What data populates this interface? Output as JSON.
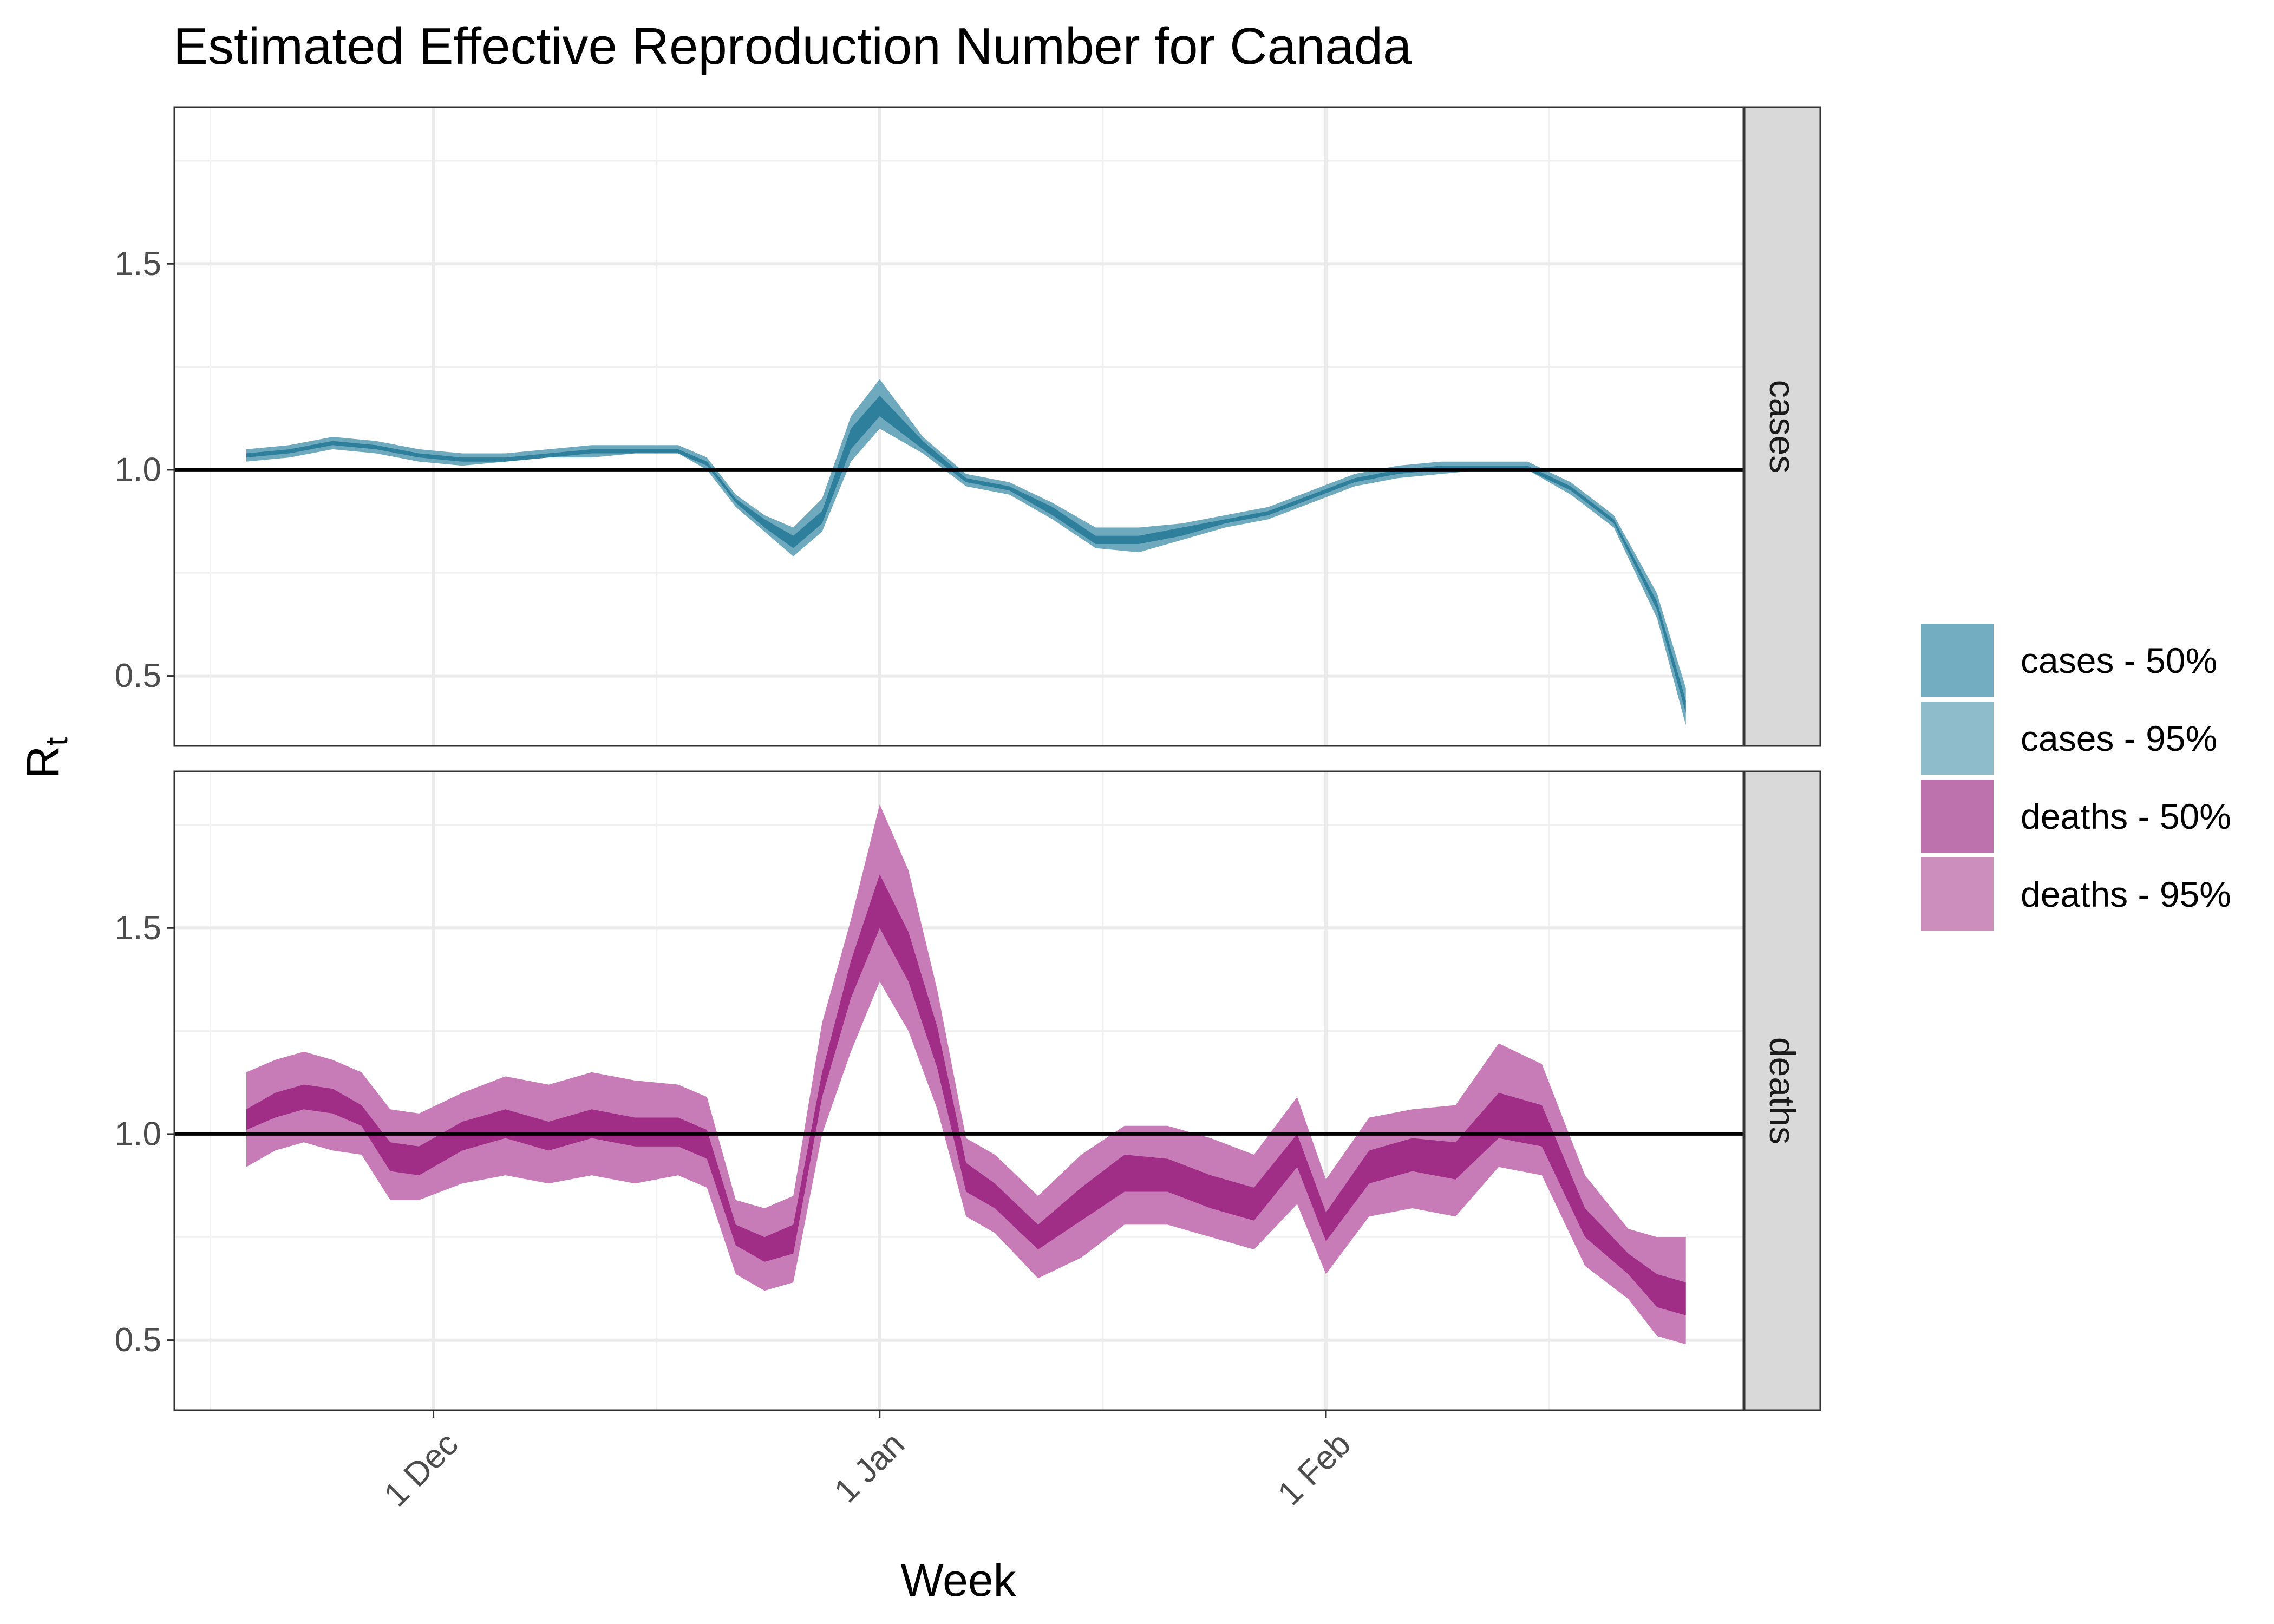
{
  "chart_data": {
    "type": "area",
    "title": "Estimated Effective Reproduction Number for Canada",
    "xlabel": "Week",
    "ylabel": "R",
    "ylabel_subscript": "t",
    "x_ticks": [
      {
        "date": "2021-12-01",
        "label": "1 Dec"
      },
      {
        "date": "2022-01-01",
        "label": "1 Jan"
      },
      {
        "date": "2022-02-01",
        "label": "1 Feb"
      }
    ],
    "xlim": [
      "2021-11-13",
      "2022-03-02"
    ],
    "ylim": [
      0.33,
      1.88
    ],
    "y_ticks": [
      0.5,
      1.0,
      1.5
    ],
    "y_tick_labels": [
      "0.5",
      "1.0",
      "1.5"
    ],
    "reference_line": 1.0,
    "grid": true,
    "legend_position": "right",
    "legend": [
      "cases - 50%",
      "cases - 95%",
      "deaths - 50%",
      "deaths - 95%"
    ],
    "colors": {
      "cases_50": "#2e7f9b",
      "cases_95": "#6fa9bd",
      "deaths_50": "#a02d86",
      "deaths_95": "#c77cb7",
      "legend_cases_50": "#72adc1",
      "legend_cases_95": "#8ebccb",
      "legend_deaths_50": "#bd72ad",
      "legend_deaths_95": "#cb8ebd",
      "strip_bg": "#d9d9d9"
    },
    "panels": [
      {
        "name": "cases",
        "x": [
          "2021-11-18",
          "2021-11-21",
          "2021-11-24",
          "2021-11-27",
          "2021-11-30",
          "2021-12-03",
          "2021-12-06",
          "2021-12-09",
          "2021-12-12",
          "2021-12-15",
          "2021-12-18",
          "2021-12-20",
          "2021-12-22",
          "2021-12-24",
          "2021-12-26",
          "2021-12-28",
          "2021-12-30",
          "2022-01-01",
          "2022-01-04",
          "2022-01-07",
          "2022-01-10",
          "2022-01-13",
          "2022-01-16",
          "2022-01-19",
          "2022-01-22",
          "2022-01-25",
          "2022-01-28",
          "2022-01-31",
          "2022-02-03",
          "2022-02-06",
          "2022-02-09",
          "2022-02-12",
          "2022-02-15",
          "2022-02-18",
          "2022-02-21",
          "2022-02-24",
          "2022-02-26"
        ],
        "lower95": [
          1.02,
          1.03,
          1.05,
          1.04,
          1.02,
          1.01,
          1.02,
          1.03,
          1.03,
          1.04,
          1.04,
          1.0,
          0.91,
          0.85,
          0.79,
          0.85,
          1.02,
          1.1,
          1.04,
          0.96,
          0.94,
          0.88,
          0.81,
          0.8,
          0.83,
          0.86,
          0.88,
          0.92,
          0.96,
          0.98,
          0.99,
          1.0,
          1.0,
          0.94,
          0.86,
          0.64,
          0.38
        ],
        "lower50": [
          1.03,
          1.04,
          1.06,
          1.05,
          1.03,
          1.02,
          1.02,
          1.03,
          1.04,
          1.04,
          1.04,
          1.01,
          0.92,
          0.86,
          0.81,
          0.87,
          1.05,
          1.13,
          1.05,
          0.97,
          0.95,
          0.89,
          0.82,
          0.82,
          0.84,
          0.87,
          0.89,
          0.93,
          0.97,
          0.99,
          1.0,
          1.0,
          1.0,
          0.95,
          0.87,
          0.66,
          0.41
        ],
        "upper50": [
          1.04,
          1.05,
          1.07,
          1.06,
          1.04,
          1.03,
          1.03,
          1.04,
          1.05,
          1.05,
          1.05,
          1.02,
          0.93,
          0.88,
          0.84,
          0.9,
          1.1,
          1.18,
          1.07,
          0.98,
          0.96,
          0.91,
          0.84,
          0.84,
          0.86,
          0.88,
          0.9,
          0.94,
          0.98,
          1.0,
          1.01,
          1.01,
          1.01,
          0.96,
          0.88,
          0.68,
          0.44
        ],
        "upper95": [
          1.05,
          1.06,
          1.08,
          1.07,
          1.05,
          1.04,
          1.04,
          1.05,
          1.06,
          1.06,
          1.06,
          1.03,
          0.94,
          0.89,
          0.86,
          0.93,
          1.13,
          1.22,
          1.08,
          0.99,
          0.97,
          0.92,
          0.86,
          0.86,
          0.87,
          0.89,
          0.91,
          0.95,
          0.99,
          1.01,
          1.02,
          1.02,
          1.02,
          0.97,
          0.89,
          0.7,
          0.47
        ]
      },
      {
        "name": "deaths",
        "x": [
          "2021-11-18",
          "2021-11-20",
          "2021-11-22",
          "2021-11-24",
          "2021-11-26",
          "2021-11-28",
          "2021-11-30",
          "2021-12-03",
          "2021-12-06",
          "2021-12-09",
          "2021-12-12",
          "2021-12-15",
          "2021-12-18",
          "2021-12-20",
          "2021-12-22",
          "2021-12-24",
          "2021-12-26",
          "2021-12-28",
          "2021-12-30",
          "2022-01-01",
          "2022-01-03",
          "2022-01-05",
          "2022-01-07",
          "2022-01-09",
          "2022-01-12",
          "2022-01-15",
          "2022-01-18",
          "2022-01-21",
          "2022-01-24",
          "2022-01-27",
          "2022-01-30",
          "2022-02-01",
          "2022-02-04",
          "2022-02-07",
          "2022-02-10",
          "2022-02-13",
          "2022-02-16",
          "2022-02-19",
          "2022-02-22",
          "2022-02-24",
          "2022-02-26"
        ],
        "lower95": [
          0.92,
          0.96,
          0.98,
          0.96,
          0.95,
          0.84,
          0.84,
          0.88,
          0.9,
          0.88,
          0.9,
          0.88,
          0.9,
          0.87,
          0.66,
          0.62,
          0.64,
          1.0,
          1.2,
          1.37,
          1.25,
          1.06,
          0.8,
          0.76,
          0.65,
          0.7,
          0.78,
          0.78,
          0.75,
          0.72,
          0.83,
          0.66,
          0.8,
          0.82,
          0.8,
          0.92,
          0.9,
          0.68,
          0.6,
          0.51,
          0.49
        ],
        "lower50": [
          1.01,
          1.04,
          1.06,
          1.05,
          1.02,
          0.91,
          0.9,
          0.96,
          0.99,
          0.96,
          0.99,
          0.97,
          0.97,
          0.94,
          0.73,
          0.69,
          0.71,
          1.09,
          1.33,
          1.5,
          1.37,
          1.16,
          0.86,
          0.82,
          0.72,
          0.79,
          0.86,
          0.86,
          0.82,
          0.79,
          0.92,
          0.74,
          0.88,
          0.91,
          0.89,
          0.99,
          0.97,
          0.75,
          0.66,
          0.58,
          0.56
        ],
        "upper50": [
          1.06,
          1.1,
          1.12,
          1.11,
          1.07,
          0.98,
          0.97,
          1.03,
          1.06,
          1.03,
          1.06,
          1.04,
          1.04,
          1.01,
          0.78,
          0.75,
          0.78,
          1.15,
          1.42,
          1.63,
          1.49,
          1.26,
          0.93,
          0.88,
          0.78,
          0.87,
          0.95,
          0.94,
          0.9,
          0.87,
          1.0,
          0.81,
          0.96,
          0.99,
          0.98,
          1.1,
          1.07,
          0.82,
          0.71,
          0.66,
          0.64
        ],
        "upper95": [
          1.15,
          1.18,
          1.2,
          1.18,
          1.15,
          1.06,
          1.05,
          1.1,
          1.14,
          1.12,
          1.15,
          1.13,
          1.12,
          1.09,
          0.84,
          0.82,
          0.85,
          1.27,
          1.52,
          1.8,
          1.64,
          1.35,
          0.99,
          0.95,
          0.85,
          0.95,
          1.02,
          1.02,
          0.99,
          0.95,
          1.09,
          0.89,
          1.04,
          1.06,
          1.07,
          1.22,
          1.17,
          0.9,
          0.77,
          0.75,
          0.75
        ]
      }
    ]
  }
}
